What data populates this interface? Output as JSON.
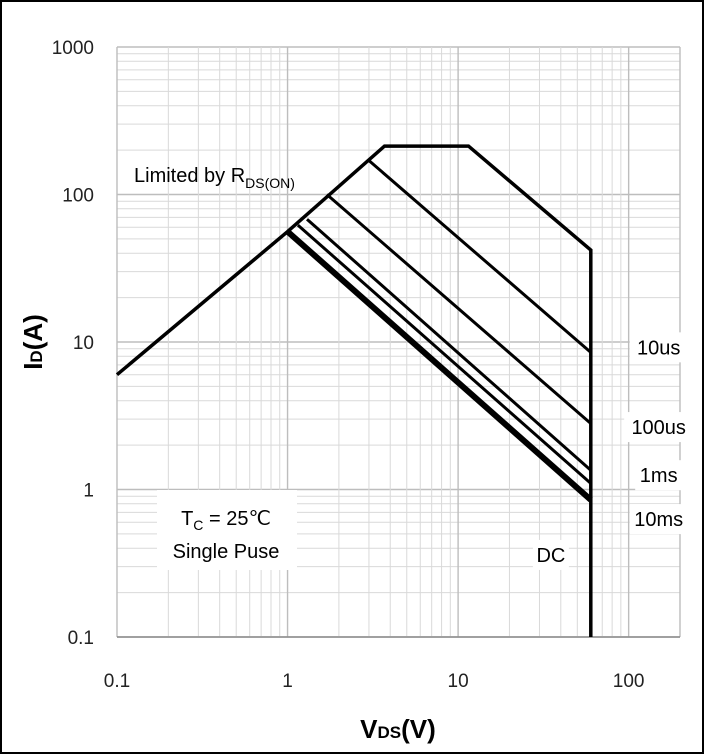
{
  "chart_data": {
    "type": "line",
    "title": "",
    "xlabel": {
      "main": "V",
      "sub": "DS",
      "unit": "(V)"
    },
    "ylabel": {
      "main": "I",
      "sub": "D",
      "unit": "(A)"
    },
    "x_scale": "log",
    "y_scale": "log",
    "xlim": [
      0.1,
      200
    ],
    "ylim": [
      0.1,
      1000
    ],
    "x_ticks": [
      0.1,
      1,
      10,
      100
    ],
    "x_tick_labels": [
      "0.1",
      "1",
      "10",
      "100"
    ],
    "y_ticks": [
      0.1,
      1,
      10,
      100,
      1000
    ],
    "y_tick_labels": [
      "0.1",
      "1",
      "10",
      "100",
      "1000"
    ],
    "grid": true,
    "series": [
      {
        "points": [
          [
            0.1,
            6
          ],
          [
            1.0,
            56
          ],
          [
            3.7,
            213
          ],
          [
            11.5,
            213
          ],
          [
            60,
            42
          ],
          [
            60,
            0.1
          ]
        ],
        "stroke_width": 3.5
      },
      {
        "points": [
          [
            3.0,
            170
          ],
          [
            60,
            8.5
          ]
        ],
        "stroke_width": 3
      },
      {
        "points": [
          [
            1.7,
            100
          ],
          [
            60,
            2.8
          ]
        ],
        "stroke_width": 3
      },
      {
        "points": [
          [
            1.3,
            68
          ],
          [
            60,
            1.35
          ]
        ],
        "stroke_width": 3
      },
      {
        "points": [
          [
            1.15,
            62
          ],
          [
            60,
            1.1
          ]
        ],
        "stroke_width": 3
      },
      {
        "points": [
          [
            1.0,
            56
          ],
          [
            60,
            0.85
          ]
        ],
        "stroke_width": 6
      }
    ],
    "annotations": {
      "limited": {
        "text": "Limited by R",
        "sub": "DS(ON)"
      },
      "tc": {
        "text": "T",
        "sub": "C",
        "rest": " = 25℃"
      },
      "single": "Single Puse",
      "labels": [
        {
          "text": "10us",
          "x": 150,
          "y": 9.2
        },
        {
          "text": "100us",
          "x": 150,
          "y": 2.65
        },
        {
          "text": "1ms",
          "x": 150,
          "y": 1.25
        },
        {
          "text": "10ms",
          "x": 150,
          "y": 0.63
        },
        {
          "text": "DC",
          "x": 35,
          "y": 0.36
        }
      ]
    }
  }
}
